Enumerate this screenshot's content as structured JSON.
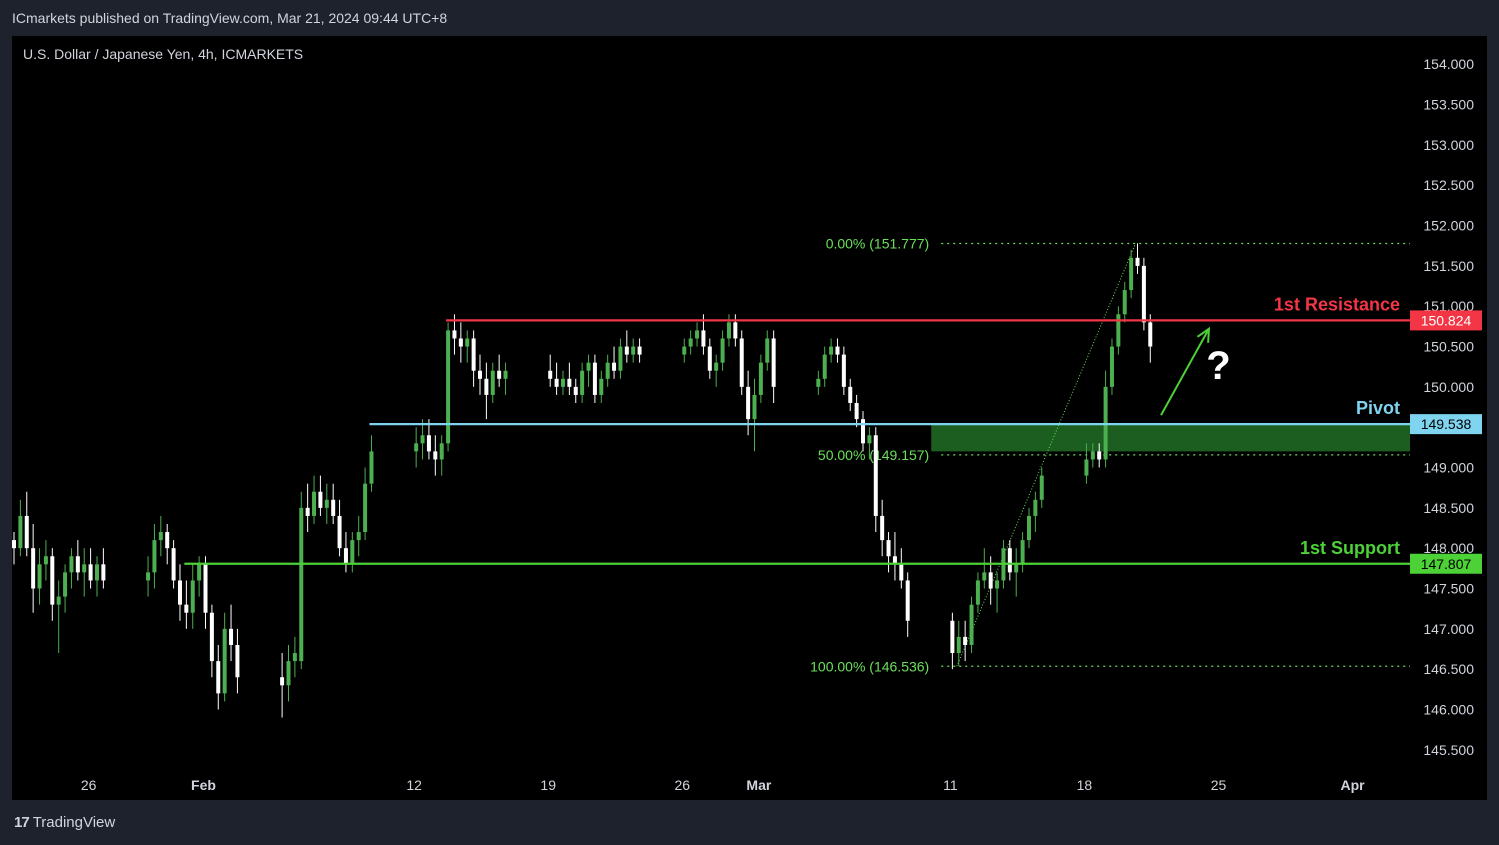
{
  "header": {
    "published": "ICmarkets published on TradingView.com, Mar 21, 2024 09:44 UTC+8"
  },
  "footer": {
    "brand": "TradingView",
    "brand_mark": "17"
  },
  "colors": {
    "up": "#4caf50",
    "down": "#ffffff",
    "resistance": "#f23645",
    "pivot": "#7fd4f0",
    "support": "#4cd137",
    "fib": "#6ae05a",
    "zone": "#1b5e20",
    "axis_text": "#d1d4dc",
    "background": "#000000"
  },
  "chart_data": {
    "type": "candlestick",
    "title": "U.S. Dollar / Japanese Yen, 4h, ICMARKETS",
    "ylim": [
      145.25,
      154.35
    ],
    "y_ticks": [
      "145.500",
      "146.000",
      "146.500",
      "147.000",
      "147.500",
      "148.000",
      "148.500",
      "149.000",
      "149.500",
      "150.000",
      "150.500",
      "151.000",
      "151.500",
      "152.000",
      "152.500",
      "153.000",
      "153.500",
      "154.000"
    ],
    "x_ticks": [
      "26",
      "Feb",
      "12",
      "19",
      "26",
      "Mar",
      "11",
      "18",
      "25",
      "Apr"
    ],
    "x_tick_dates": [
      "2024-01-26",
      "2024-02-01",
      "2024-02-12",
      "2024-02-19",
      "2024-02-26",
      "2024-03-01",
      "2024-03-11",
      "2024-03-18",
      "2024-03-25",
      "2024-04-01"
    ],
    "x_range": [
      "2024-01-22",
      "2024-04-04"
    ],
    "candles": [
      {
        "t": "2024-01-22 00:00",
        "o": 148.1,
        "h": 148.2,
        "l": 147.8,
        "c": 148.0
      },
      {
        "t": "2024-01-22 08:00",
        "o": 148.0,
        "h": 148.6,
        "l": 147.9,
        "c": 148.4
      },
      {
        "t": "2024-01-22 16:00",
        "o": 148.4,
        "h": 148.7,
        "l": 147.9,
        "c": 148.0
      },
      {
        "t": "2024-01-23 00:00",
        "o": 148.0,
        "h": 148.3,
        "l": 147.2,
        "c": 147.5
      },
      {
        "t": "2024-01-23 08:00",
        "o": 147.5,
        "h": 148.0,
        "l": 147.3,
        "c": 147.8
      },
      {
        "t": "2024-01-23 16:00",
        "o": 147.8,
        "h": 148.1,
        "l": 147.6,
        "c": 147.9
      },
      {
        "t": "2024-01-24 00:00",
        "o": 147.9,
        "h": 148.0,
        "l": 147.1,
        "c": 147.3
      },
      {
        "t": "2024-01-24 08:00",
        "o": 147.3,
        "h": 147.6,
        "l": 146.7,
        "c": 147.4
      },
      {
        "t": "2024-01-24 16:00",
        "o": 147.4,
        "h": 147.8,
        "l": 147.2,
        "c": 147.7
      },
      {
        "t": "2024-01-25 00:00",
        "o": 147.7,
        "h": 148.0,
        "l": 147.5,
        "c": 147.9
      },
      {
        "t": "2024-01-25 08:00",
        "o": 147.9,
        "h": 148.1,
        "l": 147.6,
        "c": 147.7
      },
      {
        "t": "2024-01-25 16:00",
        "o": 147.7,
        "h": 148.0,
        "l": 147.4,
        "c": 147.8
      },
      {
        "t": "2024-01-26 00:00",
        "o": 147.8,
        "h": 148.0,
        "l": 147.5,
        "c": 147.6
      },
      {
        "t": "2024-01-26 08:00",
        "o": 147.6,
        "h": 147.9,
        "l": 147.4,
        "c": 147.8
      },
      {
        "t": "2024-01-26 16:00",
        "o": 147.8,
        "h": 148.0,
        "l": 147.5,
        "c": 147.6
      },
      {
        "t": "2024-01-29 00:00",
        "o": 147.6,
        "h": 147.9,
        "l": 147.4,
        "c": 147.7
      },
      {
        "t": "2024-01-29 08:00",
        "o": 147.7,
        "h": 148.3,
        "l": 147.5,
        "c": 148.1
      },
      {
        "t": "2024-01-29 16:00",
        "o": 148.1,
        "h": 148.4,
        "l": 147.9,
        "c": 148.2
      },
      {
        "t": "2024-01-30 00:00",
        "o": 148.2,
        "h": 148.3,
        "l": 147.8,
        "c": 148.0
      },
      {
        "t": "2024-01-30 08:00",
        "o": 148.0,
        "h": 148.1,
        "l": 147.5,
        "c": 147.6
      },
      {
        "t": "2024-01-30 16:00",
        "o": 147.6,
        "h": 147.8,
        "l": 147.1,
        "c": 147.3
      },
      {
        "t": "2024-01-31 00:00",
        "o": 147.3,
        "h": 147.6,
        "l": 147.0,
        "c": 147.2
      },
      {
        "t": "2024-01-31 08:00",
        "o": 147.2,
        "h": 147.8,
        "l": 147.0,
        "c": 147.6
      },
      {
        "t": "2024-01-31 16:00",
        "o": 147.6,
        "h": 147.9,
        "l": 147.4,
        "c": 147.8
      },
      {
        "t": "2024-02-01 00:00",
        "o": 147.8,
        "h": 147.9,
        "l": 147.0,
        "c": 147.2
      },
      {
        "t": "2024-02-01 08:00",
        "o": 147.2,
        "h": 147.3,
        "l": 146.4,
        "c": 146.6
      },
      {
        "t": "2024-02-01 16:00",
        "o": 146.6,
        "h": 146.8,
        "l": 146.0,
        "c": 146.2
      },
      {
        "t": "2024-02-02 00:00",
        "o": 146.2,
        "h": 147.2,
        "l": 146.1,
        "c": 147.0
      },
      {
        "t": "2024-02-02 08:00",
        "o": 147.0,
        "h": 147.3,
        "l": 146.6,
        "c": 146.8
      },
      {
        "t": "2024-02-02 16:00",
        "o": 146.8,
        "h": 147.0,
        "l": 146.2,
        "c": 146.4
      },
      {
        "t": "2024-02-05 00:00",
        "o": 146.4,
        "h": 146.7,
        "l": 145.9,
        "c": 146.3
      },
      {
        "t": "2024-02-05 08:00",
        "o": 146.3,
        "h": 146.8,
        "l": 146.1,
        "c": 146.6
      },
      {
        "t": "2024-02-05 16:00",
        "o": 146.6,
        "h": 146.9,
        "l": 146.4,
        "c": 146.7
      },
      {
        "t": "2024-02-06 00:00",
        "o": 146.6,
        "h": 148.7,
        "l": 146.5,
        "c": 148.5
      },
      {
        "t": "2024-02-06 08:00",
        "o": 148.5,
        "h": 148.8,
        "l": 148.2,
        "c": 148.4
      },
      {
        "t": "2024-02-06 16:00",
        "o": 148.4,
        "h": 148.9,
        "l": 148.3,
        "c": 148.7
      },
      {
        "t": "2024-02-07 00:00",
        "o": 148.7,
        "h": 148.9,
        "l": 148.4,
        "c": 148.5
      },
      {
        "t": "2024-02-07 08:00",
        "o": 148.5,
        "h": 148.8,
        "l": 148.3,
        "c": 148.6
      },
      {
        "t": "2024-02-07 16:00",
        "o": 148.6,
        "h": 148.8,
        "l": 148.3,
        "c": 148.4
      },
      {
        "t": "2024-02-08 00:00",
        "o": 148.4,
        "h": 148.6,
        "l": 147.9,
        "c": 148.0
      },
      {
        "t": "2024-02-08 08:00",
        "o": 148.0,
        "h": 148.2,
        "l": 147.7,
        "c": 147.8
      },
      {
        "t": "2024-02-08 16:00",
        "o": 147.8,
        "h": 148.2,
        "l": 147.7,
        "c": 148.1
      },
      {
        "t": "2024-02-09 00:00",
        "o": 148.1,
        "h": 148.4,
        "l": 147.9,
        "c": 148.2
      },
      {
        "t": "2024-02-09 08:00",
        "o": 148.2,
        "h": 149.0,
        "l": 148.1,
        "c": 148.8
      },
      {
        "t": "2024-02-09 16:00",
        "o": 148.8,
        "h": 149.4,
        "l": 148.7,
        "c": 149.2
      },
      {
        "t": "2024-02-12 00:00",
        "o": 149.2,
        "h": 149.5,
        "l": 149.0,
        "c": 149.3
      },
      {
        "t": "2024-02-12 08:00",
        "o": 149.3,
        "h": 149.6,
        "l": 149.1,
        "c": 149.4
      },
      {
        "t": "2024-02-12 16:00",
        "o": 149.4,
        "h": 149.6,
        "l": 149.1,
        "c": 149.2
      },
      {
        "t": "2024-02-13 00:00",
        "o": 149.2,
        "h": 149.4,
        "l": 148.9,
        "c": 149.1
      },
      {
        "t": "2024-02-13 08:00",
        "o": 149.1,
        "h": 149.4,
        "l": 148.9,
        "c": 149.3
      },
      {
        "t": "2024-02-13 16:00",
        "o": 149.3,
        "h": 150.8,
        "l": 149.2,
        "c": 150.7
      },
      {
        "t": "2024-02-14 00:00",
        "o": 150.7,
        "h": 150.9,
        "l": 150.4,
        "c": 150.6
      },
      {
        "t": "2024-02-14 08:00",
        "o": 150.6,
        "h": 150.8,
        "l": 150.3,
        "c": 150.5
      },
      {
        "t": "2024-02-14 16:00",
        "o": 150.5,
        "h": 150.7,
        "l": 150.3,
        "c": 150.6
      },
      {
        "t": "2024-02-15 00:00",
        "o": 150.6,
        "h": 150.7,
        "l": 150.0,
        "c": 150.2
      },
      {
        "t": "2024-02-15 08:00",
        "o": 150.2,
        "h": 150.4,
        "l": 149.9,
        "c": 150.1
      },
      {
        "t": "2024-02-15 16:00",
        "o": 150.1,
        "h": 150.3,
        "l": 149.6,
        "c": 149.9
      },
      {
        "t": "2024-02-16 00:00",
        "o": 149.9,
        "h": 150.3,
        "l": 149.8,
        "c": 150.2
      },
      {
        "t": "2024-02-16 08:00",
        "o": 150.2,
        "h": 150.4,
        "l": 150.0,
        "c": 150.1
      },
      {
        "t": "2024-02-16 16:00",
        "o": 150.1,
        "h": 150.3,
        "l": 149.9,
        "c": 150.2
      },
      {
        "t": "2024-02-19 00:00",
        "o": 150.2,
        "h": 150.4,
        "l": 150.0,
        "c": 150.1
      },
      {
        "t": "2024-02-19 08:00",
        "o": 150.1,
        "h": 150.3,
        "l": 149.9,
        "c": 150.0
      },
      {
        "t": "2024-02-19 16:00",
        "o": 150.0,
        "h": 150.2,
        "l": 149.9,
        "c": 150.1
      },
      {
        "t": "2024-02-20 00:00",
        "o": 150.1,
        "h": 150.3,
        "l": 149.9,
        "c": 150.0
      },
      {
        "t": "2024-02-20 08:00",
        "o": 150.0,
        "h": 150.1,
        "l": 149.8,
        "c": 149.9
      },
      {
        "t": "2024-02-20 16:00",
        "o": 149.9,
        "h": 150.3,
        "l": 149.8,
        "c": 150.2
      },
      {
        "t": "2024-02-21 00:00",
        "o": 150.2,
        "h": 150.4,
        "l": 150.0,
        "c": 150.3
      },
      {
        "t": "2024-02-21 08:00",
        "o": 150.3,
        "h": 150.4,
        "l": 149.8,
        "c": 149.9
      },
      {
        "t": "2024-02-21 16:00",
        "o": 149.9,
        "h": 150.2,
        "l": 149.8,
        "c": 150.1
      },
      {
        "t": "2024-02-22 00:00",
        "o": 150.1,
        "h": 150.4,
        "l": 150.0,
        "c": 150.3
      },
      {
        "t": "2024-02-22 08:00",
        "o": 150.3,
        "h": 150.5,
        "l": 150.1,
        "c": 150.2
      },
      {
        "t": "2024-02-22 16:00",
        "o": 150.2,
        "h": 150.6,
        "l": 150.1,
        "c": 150.5
      },
      {
        "t": "2024-02-23 00:00",
        "o": 150.5,
        "h": 150.7,
        "l": 150.3,
        "c": 150.4
      },
      {
        "t": "2024-02-23 08:00",
        "o": 150.4,
        "h": 150.6,
        "l": 150.3,
        "c": 150.5
      },
      {
        "t": "2024-02-23 16:00",
        "o": 150.5,
        "h": 150.6,
        "l": 150.3,
        "c": 150.4
      },
      {
        "t": "2024-02-26 00:00",
        "o": 150.4,
        "h": 150.6,
        "l": 150.3,
        "c": 150.5
      },
      {
        "t": "2024-02-26 08:00",
        "o": 150.5,
        "h": 150.7,
        "l": 150.4,
        "c": 150.6
      },
      {
        "t": "2024-02-26 16:00",
        "o": 150.6,
        "h": 150.8,
        "l": 150.5,
        "c": 150.7
      },
      {
        "t": "2024-02-27 00:00",
        "o": 150.7,
        "h": 150.9,
        "l": 150.4,
        "c": 150.5
      },
      {
        "t": "2024-02-27 08:00",
        "o": 150.5,
        "h": 150.6,
        "l": 150.1,
        "c": 150.2
      },
      {
        "t": "2024-02-27 16:00",
        "o": 150.2,
        "h": 150.4,
        "l": 150.0,
        "c": 150.3
      },
      {
        "t": "2024-02-28 00:00",
        "o": 150.3,
        "h": 150.7,
        "l": 150.2,
        "c": 150.6
      },
      {
        "t": "2024-02-28 08:00",
        "o": 150.6,
        "h": 150.9,
        "l": 150.5,
        "c": 150.8
      },
      {
        "t": "2024-02-28 16:00",
        "o": 150.8,
        "h": 150.9,
        "l": 150.5,
        "c": 150.6
      },
      {
        "t": "2024-02-29 00:00",
        "o": 150.6,
        "h": 150.7,
        "l": 149.9,
        "c": 150.0
      },
      {
        "t": "2024-02-29 08:00",
        "o": 150.0,
        "h": 150.2,
        "l": 149.4,
        "c": 149.6
      },
      {
        "t": "2024-02-29 16:00",
        "o": 149.6,
        "h": 150.1,
        "l": 149.2,
        "c": 149.9
      },
      {
        "t": "2024-03-01 00:00",
        "o": 149.9,
        "h": 150.4,
        "l": 149.8,
        "c": 150.3
      },
      {
        "t": "2024-03-01 08:00",
        "o": 150.3,
        "h": 150.7,
        "l": 150.2,
        "c": 150.6
      },
      {
        "t": "2024-03-01 16:00",
        "o": 150.6,
        "h": 150.7,
        "l": 149.8,
        "c": 150.0
      },
      {
        "t": "2024-03-04 00:00",
        "o": 150.0,
        "h": 150.2,
        "l": 149.9,
        "c": 150.1
      },
      {
        "t": "2024-03-04 08:00",
        "o": 150.1,
        "h": 150.5,
        "l": 150.0,
        "c": 150.4
      },
      {
        "t": "2024-03-04 16:00",
        "o": 150.4,
        "h": 150.6,
        "l": 150.3,
        "c": 150.5
      },
      {
        "t": "2024-03-05 00:00",
        "o": 150.5,
        "h": 150.6,
        "l": 150.3,
        "c": 150.4
      },
      {
        "t": "2024-03-05 08:00",
        "o": 150.4,
        "h": 150.5,
        "l": 149.9,
        "c": 150.0
      },
      {
        "t": "2024-03-05 16:00",
        "o": 150.0,
        "h": 150.1,
        "l": 149.7,
        "c": 149.8
      },
      {
        "t": "2024-03-06 00:00",
        "o": 149.8,
        "h": 149.9,
        "l": 149.5,
        "c": 149.6
      },
      {
        "t": "2024-03-06 08:00",
        "o": 149.6,
        "h": 149.7,
        "l": 149.2,
        "c": 149.3
      },
      {
        "t": "2024-03-06 16:00",
        "o": 149.3,
        "h": 149.5,
        "l": 149.1,
        "c": 149.4
      },
      {
        "t": "2024-03-07 00:00",
        "o": 149.4,
        "h": 149.5,
        "l": 148.2,
        "c": 148.4
      },
      {
        "t": "2024-03-07 08:00",
        "o": 148.4,
        "h": 148.6,
        "l": 147.9,
        "c": 148.1
      },
      {
        "t": "2024-03-07 16:00",
        "o": 148.1,
        "h": 148.2,
        "l": 147.7,
        "c": 147.9
      },
      {
        "t": "2024-03-08 00:00",
        "o": 147.9,
        "h": 148.2,
        "l": 147.6,
        "c": 147.8
      },
      {
        "t": "2024-03-08 08:00",
        "o": 147.8,
        "h": 148.0,
        "l": 147.5,
        "c": 147.6
      },
      {
        "t": "2024-03-08 16:00",
        "o": 147.6,
        "h": 147.7,
        "l": 146.9,
        "c": 147.1
      },
      {
        "t": "2024-03-11 00:00",
        "o": 147.1,
        "h": 147.2,
        "l": 146.5,
        "c": 146.7
      },
      {
        "t": "2024-03-11 08:00",
        "o": 146.7,
        "h": 147.1,
        "l": 146.54,
        "c": 146.9
      },
      {
        "t": "2024-03-11 16:00",
        "o": 146.9,
        "h": 147.1,
        "l": 146.6,
        "c": 146.8
      },
      {
        "t": "2024-03-12 00:00",
        "o": 146.8,
        "h": 147.4,
        "l": 146.7,
        "c": 147.3
      },
      {
        "t": "2024-03-12 08:00",
        "o": 147.3,
        "h": 147.7,
        "l": 147.2,
        "c": 147.6
      },
      {
        "t": "2024-03-12 16:00",
        "o": 147.6,
        "h": 148.0,
        "l": 147.5,
        "c": 147.7
      },
      {
        "t": "2024-03-13 00:00",
        "o": 147.7,
        "h": 147.9,
        "l": 147.3,
        "c": 147.5
      },
      {
        "t": "2024-03-13 08:00",
        "o": 147.5,
        "h": 147.7,
        "l": 147.2,
        "c": 147.6
      },
      {
        "t": "2024-03-13 16:00",
        "o": 147.6,
        "h": 148.1,
        "l": 147.5,
        "c": 148.0
      },
      {
        "t": "2024-03-14 00:00",
        "o": 148.0,
        "h": 148.1,
        "l": 147.6,
        "c": 147.7
      },
      {
        "t": "2024-03-14 08:00",
        "o": 147.7,
        "h": 148.0,
        "l": 147.4,
        "c": 147.8
      },
      {
        "t": "2024-03-14 16:00",
        "o": 147.8,
        "h": 148.2,
        "l": 147.7,
        "c": 148.1
      },
      {
        "t": "2024-03-15 00:00",
        "o": 148.1,
        "h": 148.5,
        "l": 148.0,
        "c": 148.4
      },
      {
        "t": "2024-03-15 08:00",
        "o": 148.4,
        "h": 148.7,
        "l": 148.2,
        "c": 148.6
      },
      {
        "t": "2024-03-15 16:00",
        "o": 148.6,
        "h": 149.0,
        "l": 148.5,
        "c": 148.9
      },
      {
        "t": "2024-03-18 00:00",
        "o": 148.9,
        "h": 149.3,
        "l": 148.8,
        "c": 149.1
      },
      {
        "t": "2024-03-18 08:00",
        "o": 149.1,
        "h": 149.3,
        "l": 149.0,
        "c": 149.2
      },
      {
        "t": "2024-03-18 16:00",
        "o": 149.2,
        "h": 149.3,
        "l": 149.0,
        "c": 149.1
      },
      {
        "t": "2024-03-19 00:00",
        "o": 149.1,
        "h": 150.2,
        "l": 149.0,
        "c": 150.0
      },
      {
        "t": "2024-03-19 08:00",
        "o": 150.0,
        "h": 150.6,
        "l": 149.9,
        "c": 150.5
      },
      {
        "t": "2024-03-19 16:00",
        "o": 150.5,
        "h": 151.0,
        "l": 150.4,
        "c": 150.9
      },
      {
        "t": "2024-03-20 00:00",
        "o": 150.9,
        "h": 151.3,
        "l": 150.8,
        "c": 151.2
      },
      {
        "t": "2024-03-20 08:00",
        "o": 151.2,
        "h": 151.7,
        "l": 151.1,
        "c": 151.6
      },
      {
        "t": "2024-03-20 16:00",
        "o": 151.6,
        "h": 151.78,
        "l": 151.4,
        "c": 151.5
      },
      {
        "t": "2024-03-21 00:00",
        "o": 151.5,
        "h": 151.6,
        "l": 150.7,
        "c": 150.8
      },
      {
        "t": "2024-03-21 08:00",
        "o": 150.8,
        "h": 150.9,
        "l": 150.3,
        "c": 150.5
      }
    ],
    "levels": [
      {
        "name": "1st Resistance",
        "value": 150.824,
        "label": "150.824",
        "color_key": "resistance",
        "start": "2024-02-13 16:00"
      },
      {
        "name": "Pivot",
        "value": 149.538,
        "label": "149.538",
        "color_key": "pivot",
        "start": "2024-02-09 16:00"
      },
      {
        "name": "1st Support",
        "value": 147.807,
        "label": "147.807",
        "color_key": "support",
        "start": "2024-01-31 00:00"
      }
    ],
    "fib": {
      "start": "2024-03-11 08:00",
      "end": "2024-03-20 16:00",
      "label_anchor_date": "2024-03-10",
      "levels": [
        {
          "label": "0.00% (151.777)",
          "value": 151.777
        },
        {
          "label": "50.00% (149.157)",
          "value": 149.157
        },
        {
          "label": "100.00% (146.536)",
          "value": 146.536
        }
      ]
    },
    "zone": {
      "from": 149.2,
      "to": 149.538,
      "start": "2024-03-10",
      "end_at_right_edge": true
    },
    "arrow": {
      "from_date": "2024-03-22",
      "from_value": 149.65,
      "to_date": "2024-03-24 12:00",
      "to_value": 150.72
    },
    "question_mark": {
      "text": "?",
      "date": "2024-03-25",
      "value": 150.1
    }
  }
}
